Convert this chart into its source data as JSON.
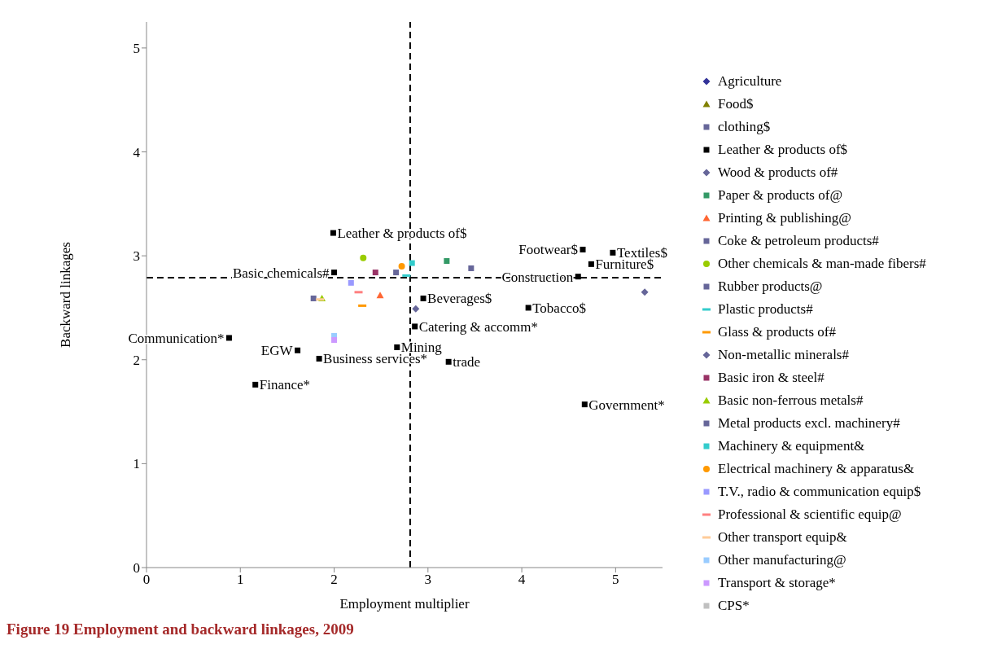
{
  "chart_data": {
    "type": "scatter",
    "title": "Figure 19 Employment and backward linkages, 2009",
    "xlabel": "Employment multiplier",
    "ylabel": "Backward linkages",
    "xlim": [
      0,
      5.5
    ],
    "xticks": [
      0,
      1,
      2,
      3,
      4,
      5
    ],
    "ylim": [
      0,
      5.25
    ],
    "yticks": [
      0,
      1,
      2,
      3,
      4,
      5
    ],
    "grid": false,
    "legend": "right",
    "series": [
      {
        "name": "Agriculture",
        "color": "#333399",
        "marker": "diamond",
        "x": [
          null
        ],
        "values": [
          null
        ]
      },
      {
        "name": "Food$",
        "color": "#808000",
        "marker": "triangle",
        "x": [
          null
        ],
        "values": [
          null
        ]
      },
      {
        "name": "clothing$",
        "color": "#666699",
        "marker": "square",
        "x": [
          null
        ],
        "values": [
          null
        ]
      },
      {
        "name": "Leather & products of$",
        "color": "#000000",
        "marker": "square",
        "x": [
          1.99,
          2.0,
          4.65,
          4.97,
          4.74,
          4.6,
          2.95,
          4.07,
          2.86,
          2.67,
          1.84,
          3.22,
          0.88,
          1.61,
          1.16,
          4.67
        ],
        "values": [
          3.22,
          2.84,
          3.06,
          3.03,
          2.92,
          2.8,
          2.59,
          2.5,
          2.32,
          2.12,
          2.01,
          1.98,
          2.21,
          2.09,
          1.76,
          1.57
        ]
      },
      {
        "name": "Wood & products of#",
        "color": "#666699",
        "marker": "diamond",
        "x": [
          2.87
        ],
        "values": [
          2.49
        ]
      },
      {
        "name": "Paper & products of@",
        "color": "#339966",
        "marker": "square",
        "x": [
          3.2
        ],
        "values": [
          2.95
        ]
      },
      {
        "name": "Printing & publishing@",
        "color": "#ff6633",
        "marker": "triangle",
        "x": [
          2.49
        ],
        "values": [
          2.62
        ]
      },
      {
        "name": "Coke & petroleum products#",
        "color": "#666699",
        "marker": "square",
        "x": [
          3.46
        ],
        "values": [
          2.88
        ]
      },
      {
        "name": "Other chemicals & man-made fibers#",
        "color": "#99cc00",
        "marker": "circle",
        "x": [
          2.31
        ],
        "values": [
          2.98
        ]
      },
      {
        "name": "Rubber products@",
        "color": "#666699",
        "marker": "square",
        "x": [
          1.78
        ],
        "values": [
          2.59
        ]
      },
      {
        "name": "Plastic products#",
        "color": "#33cccc",
        "x": [
          2.77
        ],
        "values": [
          2.81
        ]
      },
      {
        "name": "Glass & products of#",
        "color": "#ff9900",
        "x": [
          2.3
        ],
        "values": [
          2.52
        ]
      },
      {
        "name": "Non-metallic minerals#",
        "color": "#666699",
        "marker": "diamond",
        "x": [
          5.31
        ],
        "values": [
          2.65
        ]
      },
      {
        "name": "Basic iron & steel#",
        "color": "#993366",
        "marker": "square",
        "x": [
          2.44
        ],
        "values": [
          2.84
        ]
      },
      {
        "name": "Basic non-ferrous metals#",
        "color": "#99cc00",
        "marker": "triangle",
        "x": [
          1.87
        ],
        "values": [
          2.59
        ]
      },
      {
        "name": "Metal products excl. machinery#",
        "color": "#666699",
        "marker": "square",
        "x": [
          2.66
        ],
        "values": [
          2.84
        ]
      },
      {
        "name": "Machinery & equipment&",
        "color": "#33cccc",
        "marker": "square",
        "x": [
          2.83
        ],
        "values": [
          2.93
        ]
      },
      {
        "name": "Electrical machinery & apparatus&",
        "color": "#ff9900",
        "marker": "circle",
        "x": [
          2.72
        ],
        "values": [
          2.9
        ]
      },
      {
        "name": "T.V., radio & communication equip$",
        "color": "#9999ff",
        "marker": "square",
        "x": [
          2.18
        ],
        "values": [
          2.74
        ]
      },
      {
        "name": "Professional & scientific equip@",
        "color": "#ff8080",
        "x": [
          2.26
        ],
        "values": [
          2.65
        ]
      },
      {
        "name": "Other transport equip&",
        "color": "#ffcc99",
        "x": [
          1.85
        ],
        "values": [
          2.58
        ]
      },
      {
        "name": "Other manufacturing@",
        "color": "#99ccff",
        "marker": "square",
        "x": [
          2.0
        ],
        "values": [
          2.23
        ]
      },
      {
        "name": "Transport & storage*",
        "color": "#cc99ff",
        "marker": "square",
        "x": [
          2.0
        ],
        "values": [
          2.19
        ]
      },
      {
        "name": "CPS*",
        "color": "#c0c0c0",
        "marker": "square",
        "x": [
          null
        ],
        "values": [
          null
        ]
      }
    ],
    "ref_lines": [
      {
        "axis": "x",
        "value": 2.81,
        "line_style": "dashed",
        "color": "#000000"
      },
      {
        "axis": "y",
        "value": 2.79,
        "line_style": "dashed",
        "color": "#000000"
      }
    ],
    "annotations": [
      {
        "text": "Leather & products of$",
        "x": 1.99,
        "y": 3.22
      },
      {
        "text": "Basic chemicals#",
        "x": 2.0,
        "y": 2.84
      },
      {
        "text": "Footwear$",
        "x": 4.65,
        "y": 3.06
      },
      {
        "text": "Textiles$",
        "x": 4.97,
        "y": 3.03
      },
      {
        "text": "Furniture$",
        "x": 4.74,
        "y": 2.92
      },
      {
        "text": "Construction",
        "x": 4.6,
        "y": 2.8
      },
      {
        "text": "Beverages$",
        "x": 2.95,
        "y": 2.59
      },
      {
        "text": "Tobacco$",
        "x": 4.07,
        "y": 2.5
      },
      {
        "text": "Catering & accomm*",
        "x": 2.86,
        "y": 2.32
      },
      {
        "text": "Mining",
        "x": 2.67,
        "y": 2.12
      },
      {
        "text": "Business services*",
        "x": 1.84,
        "y": 2.01
      },
      {
        "text": "trade",
        "x": 3.22,
        "y": 1.98
      },
      {
        "text": "Communication*",
        "x": 0.88,
        "y": 2.21
      },
      {
        "text": "EGW",
        "x": 1.61,
        "y": 2.09
      },
      {
        "text": "Finance*",
        "x": 1.16,
        "y": 1.76
      },
      {
        "text": "Government*",
        "x": 4.67,
        "y": 1.57
      }
    ]
  }
}
